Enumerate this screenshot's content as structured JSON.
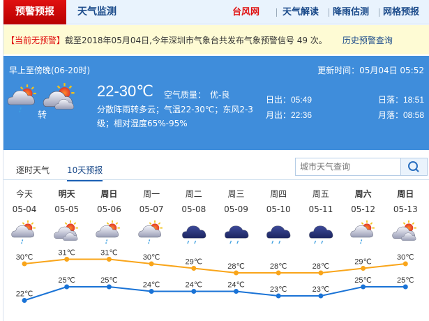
{
  "nav": {
    "warning_tab": "预警预报",
    "monitor_tab": "天气监测",
    "typhoon": "台风网",
    "interpret": "天气解读",
    "rain": "降雨估测",
    "grid": "网格预报"
  },
  "alert": {
    "tag": "【当前无预警】",
    "text": "截至2018年05月04日,今年深圳市气象台共发布气象预警信号 49 次。",
    "history_link": "历史预警查询"
  },
  "current": {
    "period": "早上至傍晚(06-20时)",
    "updated": "更新时间：05月04日 05:52",
    "icon_from": "partly-cloudy-rain",
    "icon_to": "partly-cloudy",
    "turn": "转",
    "temp": "22-30℃",
    "aq_label": "空气质量：",
    "aq_value": "优-良",
    "desc": "分散阵雨转多云；气温22-30℃；东风2-3级；相对湿度65%-95%",
    "sunrise": "日出：05:49",
    "sunset": "日落：18:51",
    "moonrise": "月出：22:36",
    "moonset": "月落：08:58"
  },
  "tabs": {
    "hourly": "逐时天气",
    "ten_day": "10天预报",
    "active": "10天预报"
  },
  "search": {
    "placeholder": "城市天气查询",
    "icon": "search-icon"
  },
  "colors": {
    "high": "#f9a51a",
    "low": "#1a73d6",
    "panel": "#3f8ddb",
    "brand_red": "#d40000"
  },
  "forecast": [
    {
      "weekday": "今天",
      "date": "05-04",
      "icon": "partly-cloudy-rain",
      "high": "30℃",
      "low": "22℃",
      "bold": false
    },
    {
      "weekday": "明天",
      "date": "05-05",
      "icon": "partly-cloudy",
      "high": "31℃",
      "low": "25℃",
      "bold": true
    },
    {
      "weekday": "周日",
      "date": "05-06",
      "icon": "partly-cloudy-rain",
      "high": "31℃",
      "low": "25℃",
      "bold": true
    },
    {
      "weekday": "周一",
      "date": "05-07",
      "icon": "partly-cloudy-rain",
      "high": "30℃",
      "low": "24℃",
      "bold": false
    },
    {
      "weekday": "周二",
      "date": "05-08",
      "icon": "heavy-rain",
      "high": "29℃",
      "low": "24℃",
      "bold": false
    },
    {
      "weekday": "周三",
      "date": "05-09",
      "icon": "heavy-rain",
      "high": "28℃",
      "low": "24℃",
      "bold": false
    },
    {
      "weekday": "周四",
      "date": "05-10",
      "icon": "heavy-rain",
      "high": "28℃",
      "low": "23℃",
      "bold": false
    },
    {
      "weekday": "周五",
      "date": "05-11",
      "icon": "heavy-rain",
      "high": "28℃",
      "low": "23℃",
      "bold": false
    },
    {
      "weekday": "周六",
      "date": "05-12",
      "icon": "partly-cloudy-rain",
      "high": "29℃",
      "low": "25℃",
      "bold": true
    },
    {
      "weekday": "周日",
      "date": "05-13",
      "icon": "partly-cloudy",
      "high": "30℃",
      "low": "25℃",
      "bold": true
    }
  ]
}
